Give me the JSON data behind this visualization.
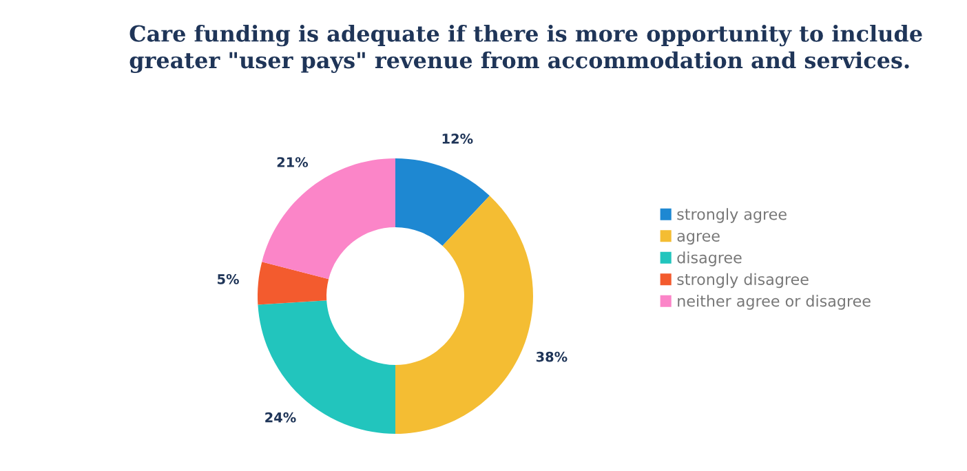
{
  "chart_data": {
    "type": "donut",
    "title": "Care funding is adequate if there is more opportunity to include greater \"user pays\" revenue from accommodation and services.",
    "categories": [
      "strongly agree",
      "agree",
      "disagree",
      "strongly disagree",
      "neither agree or disagree"
    ],
    "values": [
      12,
      38,
      24,
      5,
      21
    ],
    "colors": [
      "#1e88d2",
      "#f4bd33",
      "#22c5bd",
      "#f35b2e",
      "#fb85c8"
    ],
    "value_labels": [
      "12%",
      "38%",
      "24%",
      "5%",
      "21%"
    ],
    "legend": "right"
  }
}
